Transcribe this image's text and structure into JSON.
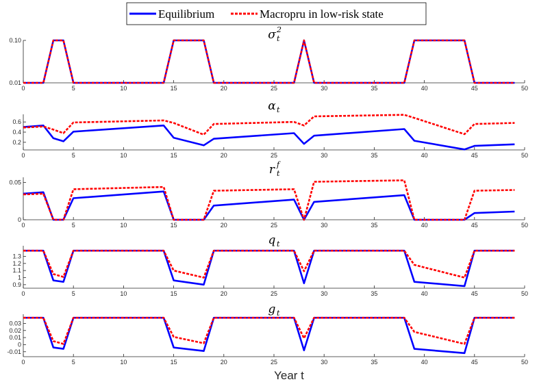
{
  "legend": {
    "series": [
      "Equilibrium",
      "Macropru in low-risk state"
    ],
    "placement": "top-center"
  },
  "xlabel": "Year t",
  "chart_data": [
    {
      "type": "line",
      "title": "σ",
      "title_sup": "2",
      "title_sub": "t",
      "xlim": [
        0,
        50
      ],
      "ylim": [
        0.01,
        0.1
      ],
      "x_ticks": [
        "0",
        "5",
        "10",
        "15",
        "20",
        "25",
        "30",
        "35",
        "40",
        "45",
        "50"
      ],
      "y_ticks": [
        "0.10",
        "0.01"
      ],
      "y_tick_values": [
        0.1,
        0.01
      ],
      "x": [
        0,
        2,
        3,
        4,
        5,
        14,
        15,
        18,
        19,
        27,
        28,
        29,
        38,
        39,
        44,
        45,
        49
      ],
      "series": [
        {
          "name": "Equilibrium",
          "color": "#0000ff",
          "values": [
            0.01,
            0.01,
            0.1,
            0.1,
            0.01,
            0.01,
            0.1,
            0.1,
            0.01,
            0.01,
            0.1,
            0.01,
            0.01,
            0.1,
            0.1,
            0.01,
            0.01
          ]
        },
        {
          "name": "Macropru in low-risk state",
          "color": "#ff0000",
          "values": [
            0.01,
            0.01,
            0.1,
            0.1,
            0.01,
            0.01,
            0.1,
            0.1,
            0.01,
            0.01,
            0.1,
            0.01,
            0.01,
            0.1,
            0.1,
            0.01,
            0.01
          ]
        }
      ]
    },
    {
      "type": "line",
      "title": "α",
      "title_sup": "",
      "title_sub": "t",
      "xlim": [
        0,
        50
      ],
      "ylim": [
        0.05,
        0.75
      ],
      "x_ticks": [
        "0",
        "5",
        "10",
        "15",
        "20",
        "25",
        "30",
        "35",
        "40",
        "45",
        "50"
      ],
      "y_ticks": [
        "0.6",
        "0.4",
        "0.2"
      ],
      "y_tick_values": [
        0.6,
        0.4,
        0.2
      ],
      "x": [
        0,
        2,
        3,
        4,
        5,
        14,
        15,
        18,
        19,
        27,
        28,
        29,
        38,
        39,
        44,
        45,
        49
      ],
      "series": [
        {
          "name": "Equilibrium",
          "color": "#0000ff",
          "values": [
            0.5,
            0.53,
            0.28,
            0.22,
            0.41,
            0.53,
            0.29,
            0.14,
            0.27,
            0.38,
            0.17,
            0.33,
            0.46,
            0.23,
            0.06,
            0.13,
            0.16
          ]
        },
        {
          "name": "Macropru in low-risk state",
          "color": "#ff0000",
          "values": [
            0.49,
            0.51,
            0.45,
            0.38,
            0.59,
            0.63,
            0.58,
            0.35,
            0.56,
            0.6,
            0.53,
            0.71,
            0.74,
            0.68,
            0.36,
            0.56,
            0.58
          ]
        }
      ]
    },
    {
      "type": "line",
      "title": "r",
      "title_sup": "f",
      "title_sub": "t",
      "xlim": [
        0,
        50
      ],
      "ylim": [
        0,
        0.057
      ],
      "x_ticks": [
        "0",
        "5",
        "10",
        "15",
        "20",
        "25",
        "30",
        "35",
        "40",
        "45",
        "50"
      ],
      "y_ticks": [
        "0.05",
        "0"
      ],
      "y_tick_values": [
        0.05,
        0
      ],
      "x": [
        0,
        2,
        3,
        4,
        5,
        14,
        15,
        18,
        19,
        27,
        28,
        29,
        38,
        39,
        44,
        45,
        49
      ],
      "series": [
        {
          "name": "Equilibrium",
          "color": "#0000ff",
          "values": [
            0.035,
            0.037,
            0,
            0,
            0.029,
            0.038,
            0,
            0,
            0.019,
            0.027,
            0,
            0.024,
            0.033,
            0,
            0,
            0.009,
            0.011
          ]
        },
        {
          "name": "Macropru in low-risk state",
          "color": "#ff0000",
          "values": [
            0.034,
            0.035,
            0,
            0,
            0.041,
            0.044,
            0,
            0,
            0.039,
            0.041,
            0,
            0.051,
            0.053,
            0,
            0,
            0.039,
            0.04
          ]
        }
      ]
    },
    {
      "type": "line",
      "title": "q",
      "title_sup": "",
      "title_sub": "t",
      "xlim": [
        0,
        50
      ],
      "ylim": [
        0.85,
        1.45
      ],
      "x_ticks": [
        "0",
        "5",
        "10",
        "15",
        "20",
        "25",
        "30",
        "35",
        "40",
        "45",
        "50"
      ],
      "y_ticks": [
        "1.3",
        "1.2",
        "1.1",
        "1",
        "0.9"
      ],
      "y_tick_values": [
        1.3,
        1.2,
        1.1,
        1.0,
        0.9
      ],
      "x": [
        0,
        2,
        3,
        4,
        5,
        14,
        15,
        18,
        19,
        27,
        28,
        29,
        38,
        39,
        44,
        45,
        49
      ],
      "series": [
        {
          "name": "Equilibrium",
          "color": "#0000ff",
          "values": [
            1.38,
            1.38,
            0.96,
            0.94,
            1.38,
            1.38,
            0.96,
            0.9,
            1.38,
            1.38,
            0.92,
            1.38,
            1.38,
            0.94,
            0.88,
            1.38,
            1.38
          ]
        },
        {
          "name": "Macropru in low-risk state",
          "color": "#ff0000",
          "values": [
            1.38,
            1.38,
            1.05,
            1.01,
            1.38,
            1.38,
            1.1,
            1.0,
            1.38,
            1.38,
            1.09,
            1.38,
            1.38,
            1.18,
            1.0,
            1.38,
            1.38
          ]
        }
      ]
    },
    {
      "type": "line",
      "title": "g",
      "title_sup": "",
      "title_sub": "t",
      "xlim": [
        0,
        50
      ],
      "ylim": [
        -0.017,
        0.043
      ],
      "x_ticks": [
        "0",
        "5",
        "10",
        "15",
        "20",
        "25",
        "30",
        "35",
        "40",
        "45",
        "50"
      ],
      "y_ticks": [
        "0.03",
        "0.02",
        "0.01",
        "0",
        "-0.01"
      ],
      "y_tick_values": [
        0.03,
        0.02,
        0.01,
        0.0,
        -0.01
      ],
      "x": [
        0,
        2,
        3,
        4,
        5,
        14,
        15,
        18,
        19,
        27,
        28,
        29,
        38,
        39,
        44,
        45,
        49
      ],
      "series": [
        {
          "name": "Equilibrium",
          "color": "#0000ff",
          "values": [
            0.038,
            0.038,
            -0.004,
            -0.006,
            0.038,
            0.038,
            -0.004,
            -0.009,
            0.038,
            0.038,
            -0.008,
            0.038,
            0.038,
            -0.006,
            -0.012,
            0.038,
            0.038
          ]
        },
        {
          "name": "Macropru in low-risk state",
          "color": "#ff0000",
          "values": [
            0.038,
            0.038,
            0.005,
            0.001,
            0.038,
            0.038,
            0.011,
            0.002,
            0.038,
            0.038,
            0.009,
            0.038,
            0.038,
            0.018,
            0.001,
            0.038,
            0.038
          ]
        }
      ]
    }
  ]
}
